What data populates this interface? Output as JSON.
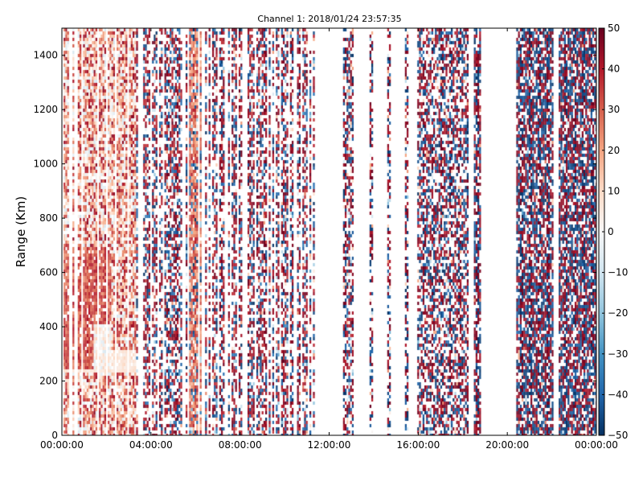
{
  "chart_data": {
    "type": "heatmap",
    "title": "Channel 1: 2018/01/24 23:57:35",
    "ylabel": "Range (Km)",
    "xlabel": "",
    "x_tick_labels": [
      "00:00:00",
      "04:00:00",
      "08:00:00",
      "12:00:00",
      "16:00:00",
      "20:00:00",
      "00:00:00"
    ],
    "x_tick_hours": [
      0,
      4,
      8,
      12,
      16,
      20,
      24
    ],
    "xlim_hours": [
      0,
      24
    ],
    "y_tick_labels": [
      "0",
      "200",
      "400",
      "600",
      "800",
      "1000",
      "1200",
      "1400"
    ],
    "y_ticks": [
      0,
      200,
      400,
      600,
      800,
      1000,
      1200,
      1400
    ],
    "ylim": [
      0,
      1500
    ],
    "colorbar": {
      "ticks": [
        50,
        40,
        30,
        20,
        10,
        0,
        -10,
        -20,
        -30,
        -40,
        -50
      ],
      "tick_labels": [
        "50",
        "40",
        "30",
        "20",
        "10",
        "0",
        "−10",
        "−20",
        "−30",
        "−40",
        "−50"
      ],
      "range": [
        -50,
        50
      ],
      "colormap": "RdBu_r",
      "colors": [
        "#053061",
        "#2166ac",
        "#4393c3",
        "#92c5de",
        "#d1e5f0",
        "#f7f7f7",
        "#fddbc7",
        "#f4a582",
        "#d6604d",
        "#b2182b",
        "#67001f"
      ]
    },
    "data_gaps_hours": [
      [
        11.3,
        12.6
      ],
      [
        13.1,
        13.75
      ],
      [
        13.95,
        14.55
      ],
      [
        14.75,
        15.35
      ],
      [
        15.55,
        15.95
      ],
      [
        18.2,
        18.45
      ],
      [
        18.8,
        20.35
      ],
      [
        22.05,
        22.25
      ]
    ],
    "sparse_columns_hours": [
      12.8,
      13.85,
      14.65,
      15.45
    ],
    "grid": false
  }
}
